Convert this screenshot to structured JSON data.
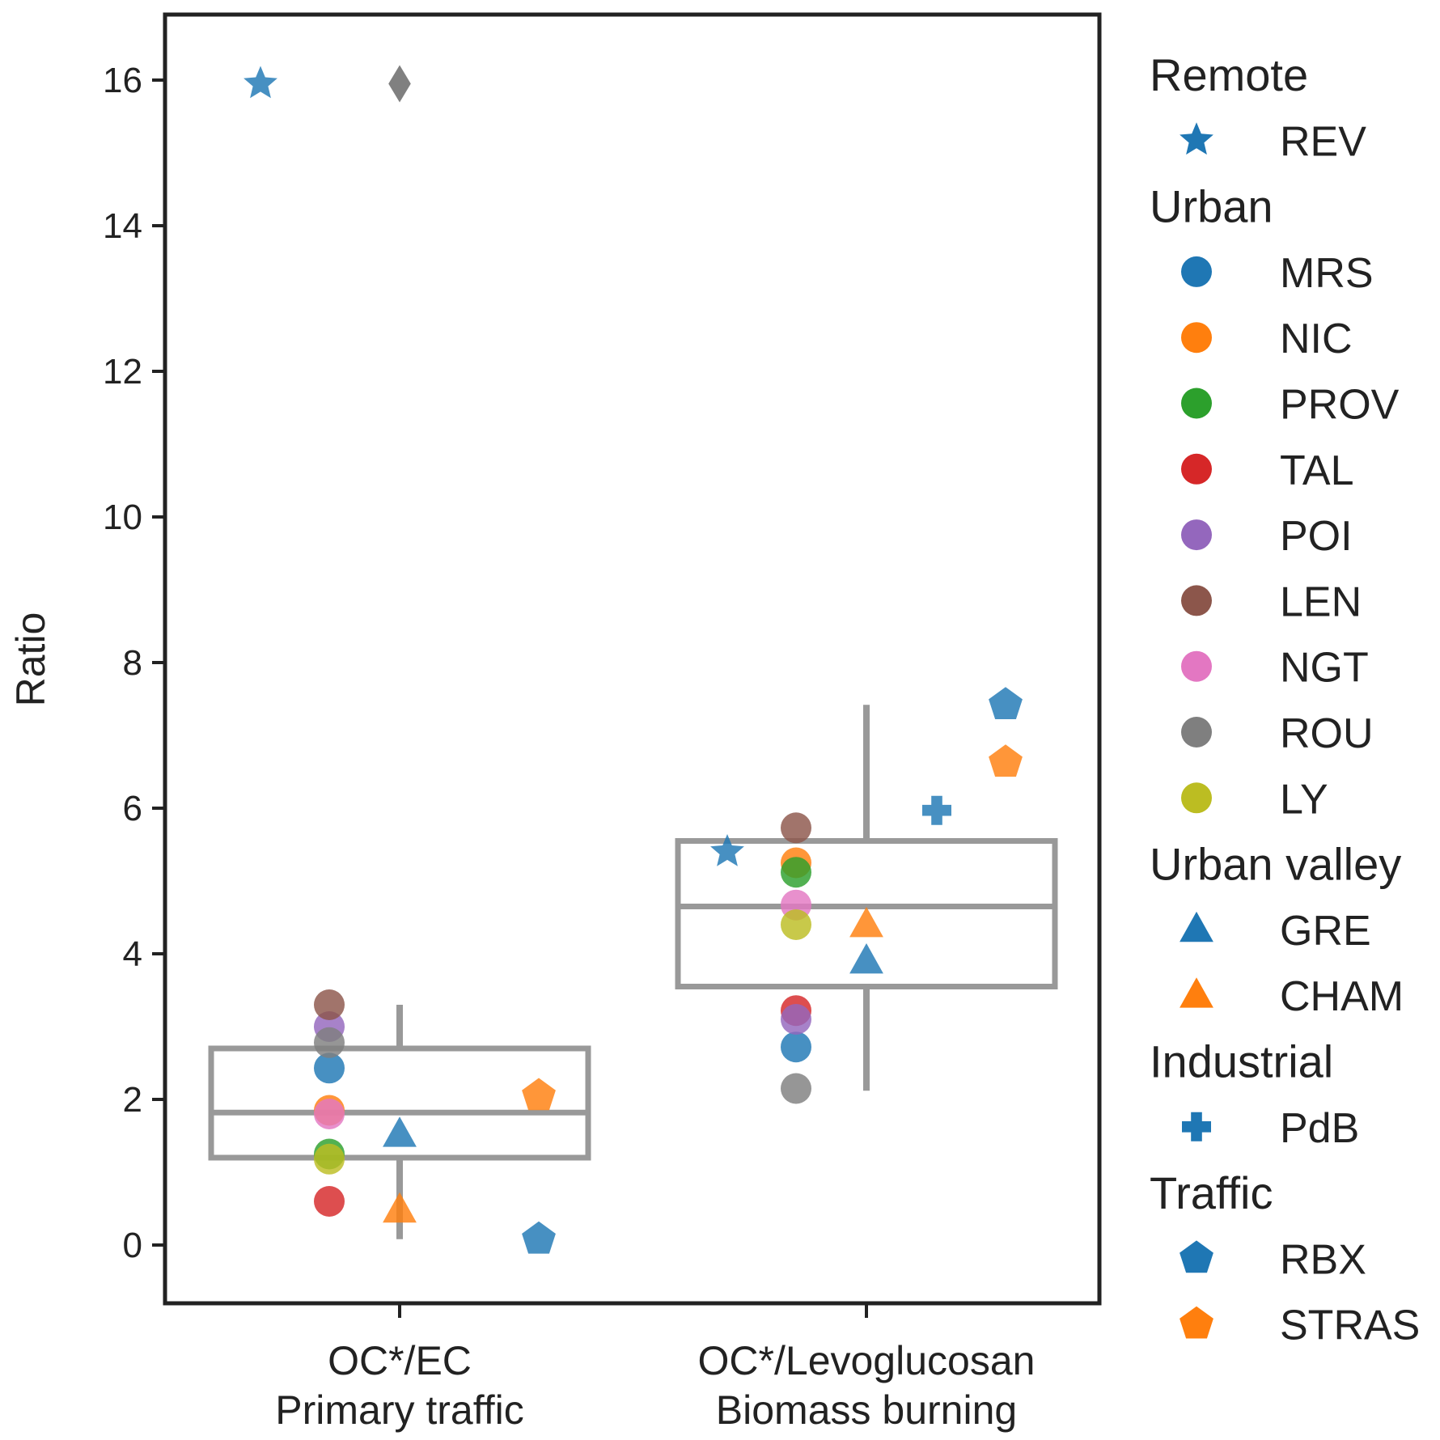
{
  "chart_data": {
    "type": "scatter",
    "ylabel": "Ratio",
    "ylim": [
      -0.8,
      16.9
    ],
    "yticks": [
      0,
      2,
      4,
      6,
      8,
      10,
      12,
      14,
      16
    ],
    "categories": [
      {
        "line1": "OC*/EC",
        "line2": "Primary traffic"
      },
      {
        "line1": "OC*/Levoglucosan",
        "line2": "Biomass burning"
      }
    ],
    "boxes": [
      {
        "category": 0,
        "q1": 1.2,
        "median": 1.82,
        "q3": 2.7,
        "whisker_low": 0.08,
        "whisker_high": 3.3,
        "outliers": [
          15.95
        ]
      },
      {
        "category": 1,
        "q1": 3.55,
        "median": 4.65,
        "q3": 5.55,
        "whisker_low": 2.12,
        "whisker_high": 7.42,
        "outliers": []
      }
    ],
    "legend": [
      {
        "group": "Remote",
        "items": [
          {
            "name": "REV",
            "color": "#1f77b4",
            "marker": "star"
          }
        ]
      },
      {
        "group": "Urban",
        "items": [
          {
            "name": "MRS",
            "color": "#1f77b4",
            "marker": "circle"
          },
          {
            "name": "NIC",
            "color": "#ff7f0e",
            "marker": "circle"
          },
          {
            "name": "PROV",
            "color": "#2ca02c",
            "marker": "circle"
          },
          {
            "name": "TAL",
            "color": "#d62728",
            "marker": "circle"
          },
          {
            "name": "POI",
            "color": "#9467bd",
            "marker": "circle"
          },
          {
            "name": "LEN",
            "color": "#8c564b",
            "marker": "circle"
          },
          {
            "name": "NGT",
            "color": "#e377c2",
            "marker": "circle"
          },
          {
            "name": "ROU",
            "color": "#7f7f7f",
            "marker": "circle"
          },
          {
            "name": "LY",
            "color": "#bcbd22",
            "marker": "circle"
          }
        ]
      },
      {
        "group": "Urban valley",
        "items": [
          {
            "name": "GRE",
            "color": "#1f77b4",
            "marker": "triangle"
          },
          {
            "name": "CHAM",
            "color": "#ff7f0e",
            "marker": "triangle"
          }
        ]
      },
      {
        "group": "Industrial",
        "items": [
          {
            "name": "PdB",
            "color": "#1f77b4",
            "marker": "plus"
          }
        ]
      },
      {
        "group": "Traffic",
        "items": [
          {
            "name": "RBX",
            "color": "#1f77b4",
            "marker": "pentagon"
          },
          {
            "name": "STRAS",
            "color": "#ff7f0e",
            "marker": "pentagon"
          }
        ]
      }
    ],
    "series": [
      {
        "name": "REV",
        "type": "Remote",
        "values": [
          15.95,
          5.4
        ]
      },
      {
        "name": "MRS",
        "type": "Urban",
        "values": [
          2.43,
          2.72
        ]
      },
      {
        "name": "NIC",
        "type": "Urban",
        "values": [
          1.85,
          5.25
        ]
      },
      {
        "name": "PROV",
        "type": "Urban",
        "values": [
          1.25,
          5.12
        ]
      },
      {
        "name": "TAL",
        "type": "Urban",
        "values": [
          0.6,
          3.22
        ]
      },
      {
        "name": "POI",
        "type": "Urban",
        "values": [
          3.0,
          3.1
        ]
      },
      {
        "name": "LEN",
        "type": "Urban",
        "values": [
          3.3,
          5.73
        ]
      },
      {
        "name": "NGT",
        "type": "Urban",
        "values": [
          1.8,
          4.67
        ]
      },
      {
        "name": "ROU",
        "type": "Urban",
        "values": [
          2.78,
          2.15
        ]
      },
      {
        "name": "LY",
        "type": "Urban",
        "values": [
          1.18,
          4.4
        ]
      },
      {
        "name": "GRE",
        "type": "Urban valley",
        "values": [
          1.52,
          3.9
        ]
      },
      {
        "name": "CHAM",
        "type": "Urban valley",
        "values": [
          0.48,
          4.4
        ]
      },
      {
        "name": "PdB",
        "type": "Industrial",
        "values": [
          null,
          5.97
        ]
      },
      {
        "name": "RBX",
        "type": "Traffic",
        "values": [
          0.08,
          7.42
        ]
      },
      {
        "name": "STRAS",
        "type": "Traffic",
        "values": [
          2.05,
          6.63
        ]
      }
    ],
    "colors": {
      "box": "#999999",
      "outlier": "#808080",
      "axis": "#222222"
    }
  }
}
